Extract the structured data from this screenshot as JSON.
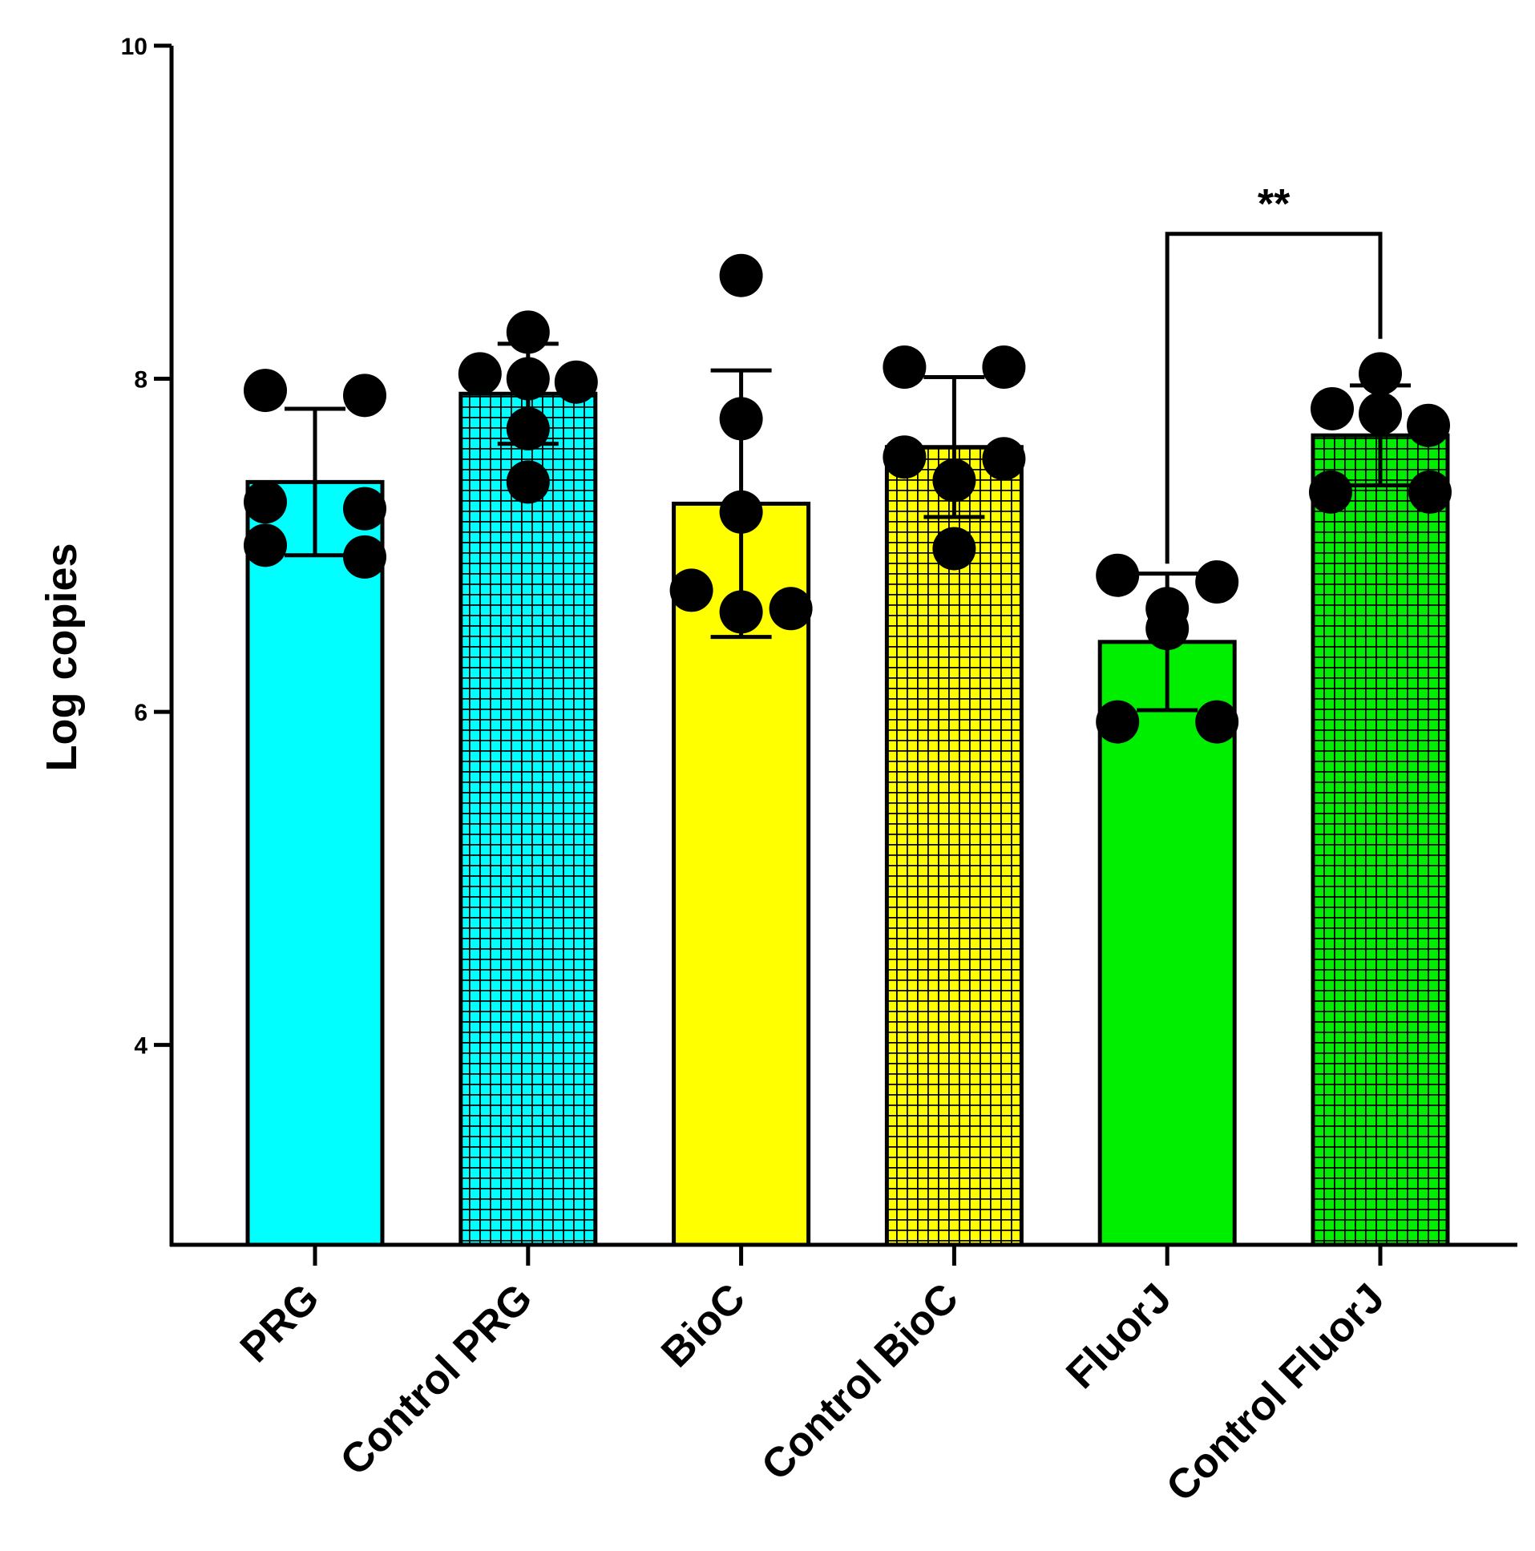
{
  "chart_data": {
    "type": "bar",
    "title": "",
    "xlabel": "",
    "ylabel": "Log copies",
    "ylim": [
      2.8,
      10
    ],
    "yticks": [
      4,
      6,
      8,
      10
    ],
    "ytick_labels": [
      "4",
      "6",
      "8",
      "10"
    ],
    "grid": false,
    "legend": "none",
    "categories": [
      "PRG",
      "Control PRG",
      "BioC",
      "Control BioC",
      "FluorJ",
      "Control FluorJ"
    ],
    "values": [
      7.38,
      7.91,
      7.25,
      7.59,
      6.42,
      7.66
    ],
    "error": [
      0.44,
      0.3,
      0.8,
      0.42,
      0.41,
      0.3
    ],
    "patterns": [
      "solid",
      "grid",
      "solid",
      "grid",
      "solid",
      "grid"
    ],
    "colors": [
      "#00ffff",
      "#00ffff",
      "#ffff00",
      "#ffff00",
      "#00ee00",
      "#00ee00"
    ],
    "points": [
      [
        7.9,
        7.93,
        7.22,
        7.26,
        6.93,
        7.0
      ],
      [
        8.0,
        8.03,
        7.98,
        8.28,
        7.7,
        7.38
      ],
      [
        8.62,
        7.76,
        7.2,
        6.73,
        6.6,
        6.62
      ],
      [
        8.07,
        8.07,
        7.53,
        7.52,
        7.39,
        6.98
      ],
      [
        6.62,
        6.78,
        6.82,
        6.5,
        5.94,
        5.94
      ],
      [
        7.79,
        7.82,
        8.03,
        7.72,
        7.32,
        7.32
      ]
    ],
    "significance": [
      {
        "from": "FluorJ",
        "to": "Control FluorJ",
        "label": "**",
        "level": 8.87
      }
    ]
  }
}
